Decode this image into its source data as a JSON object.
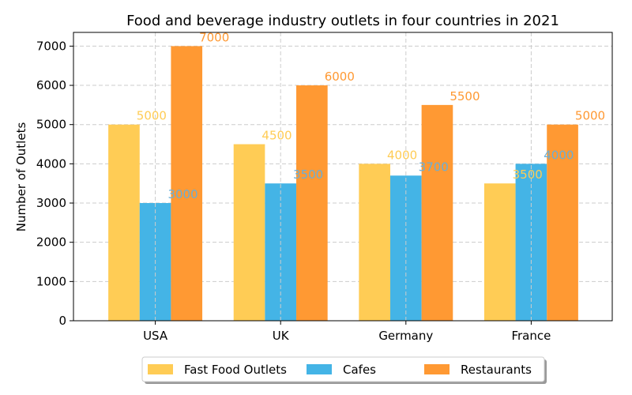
{
  "chart_data": {
    "type": "bar",
    "title": "Food and beverage industry outlets in four countries in 2021",
    "xlabel": "",
    "ylabel": "Number of Outlets",
    "categories": [
      "USA",
      "UK",
      "Germany",
      "France"
    ],
    "series": [
      {
        "name": "Fast Food Outlets",
        "values": [
          5000,
          4500,
          4000,
          3500
        ],
        "color": "#ffcc55",
        "label_color": "#ffcc55"
      },
      {
        "name": "Cafes",
        "values": [
          3000,
          3500,
          3700,
          4000
        ],
        "color": "#44b4e6",
        "label_color": "#6aaed6"
      },
      {
        "name": "Restaurants",
        "values": [
          7000,
          6000,
          5500,
          5000
        ],
        "color": "#ff9933",
        "label_color": "#ff9933"
      }
    ],
    "ylim": [
      0,
      7350
    ],
    "yticks": [
      0,
      1000,
      2000,
      3000,
      4000,
      5000,
      6000,
      7000
    ],
    "grid": true,
    "legend": "bottom-center"
  }
}
